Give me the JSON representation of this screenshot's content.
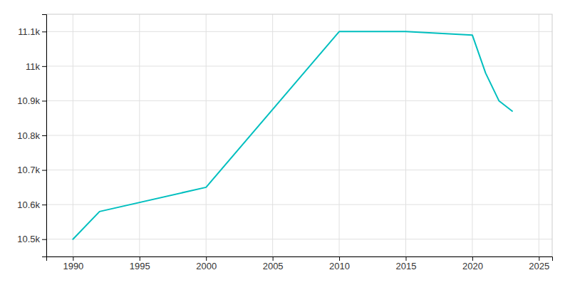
{
  "chart_data": {
    "type": "line",
    "x": [
      1990,
      1992,
      2000,
      2010,
      2015,
      2020,
      2021,
      2022,
      2023
    ],
    "values": [
      10500,
      10580,
      10650,
      11100,
      11100,
      11090,
      10980,
      10900,
      10870
    ],
    "color": "#00BFBF",
    "xlim": [
      1988,
      2026
    ],
    "ylim": [
      10450,
      11150
    ],
    "xticks": [
      1990,
      1995,
      2000,
      2005,
      2010,
      2015,
      2020,
      2025
    ],
    "yticks": [
      {
        "value": 10500,
        "label": "10.5k"
      },
      {
        "value": 10600,
        "label": "10.6k"
      },
      {
        "value": 10700,
        "label": "10.7k"
      },
      {
        "value": 10800,
        "label": "10.8k"
      },
      {
        "value": 10900,
        "label": "10.9k"
      },
      {
        "value": 11000,
        "label": "11k"
      },
      {
        "value": 11100,
        "label": "11.1k"
      }
    ],
    "grid": true
  }
}
